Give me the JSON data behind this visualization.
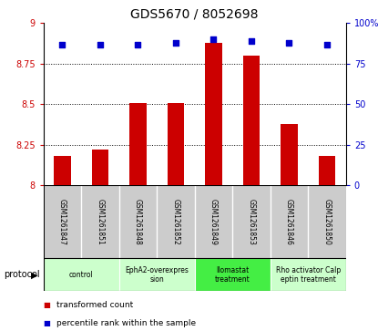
{
  "title": "GDS5670 / 8052698",
  "samples": [
    "GSM1261847",
    "GSM1261851",
    "GSM1261848",
    "GSM1261852",
    "GSM1261849",
    "GSM1261853",
    "GSM1261846",
    "GSM1261850"
  ],
  "bar_values": [
    8.18,
    8.22,
    8.51,
    8.51,
    8.88,
    8.8,
    8.38,
    8.18
  ],
  "percentile_values": [
    87,
    87,
    87,
    88,
    90,
    89,
    88,
    87
  ],
  "ylim_left": [
    8.0,
    9.0
  ],
  "ylim_right": [
    0,
    100
  ],
  "yticks_left": [
    8.0,
    8.25,
    8.5,
    8.75,
    9.0
  ],
  "yticks_right": [
    0,
    25,
    50,
    75,
    100
  ],
  "bar_color": "#cc0000",
  "dot_color": "#0000cc",
  "bg_color": "#ffffff",
  "protocol_groups": [
    {
      "label": "control",
      "start": 0,
      "end": 2,
      "color": "#ccffcc"
    },
    {
      "label": "EphA2-overexpres\nsion",
      "start": 2,
      "end": 4,
      "color": "#ccffcc"
    },
    {
      "label": "Ilomastat\ntreatment",
      "start": 4,
      "end": 6,
      "color": "#44ee44"
    },
    {
      "label": "Rho activator Calp\neptin treatment",
      "start": 6,
      "end": 8,
      "color": "#ccffcc"
    }
  ],
  "sample_bg_color": "#cccccc",
  "grid_lines": [
    8.25,
    8.5,
    8.75
  ],
  "bar_width": 0.45,
  "title_fontsize": 10,
  "tick_fontsize": 7,
  "sample_fontsize": 5.5,
  "protocol_fontsize": 5.5,
  "legend_fontsize": 6.5
}
